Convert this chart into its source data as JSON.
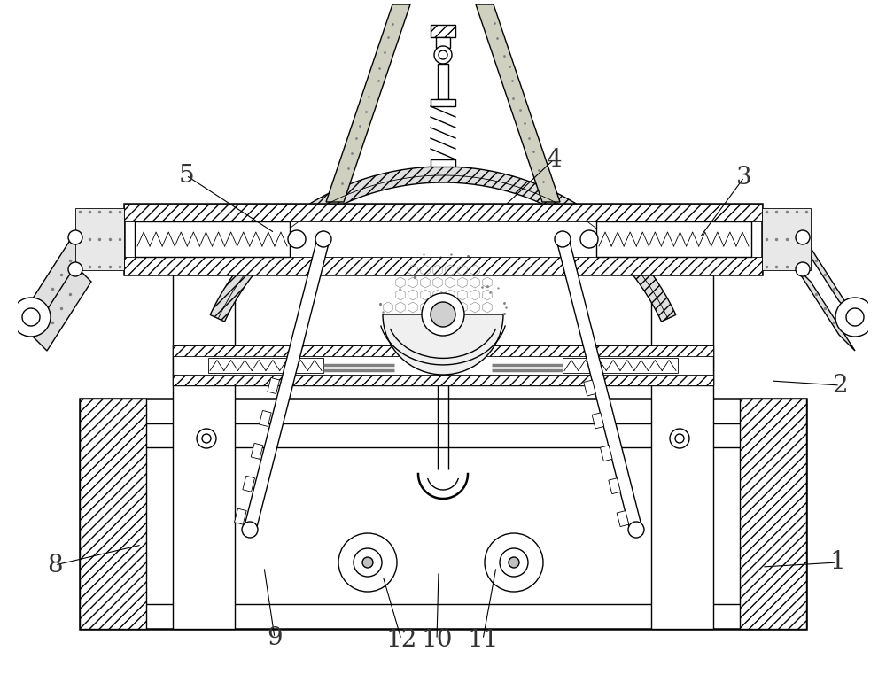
{
  "background_color": "#ffffff",
  "line_color": "#000000",
  "label_color": "#333333",
  "labels": [
    "1",
    "2",
    "3",
    "4",
    "5",
    "8",
    "9",
    "10",
    "11",
    "12"
  ],
  "figsize": [
    10.0,
    7.79
  ],
  "dpi": 100,
  "lw_main": 1.0,
  "lw_thick": 1.8,
  "lw_thin": 0.6
}
